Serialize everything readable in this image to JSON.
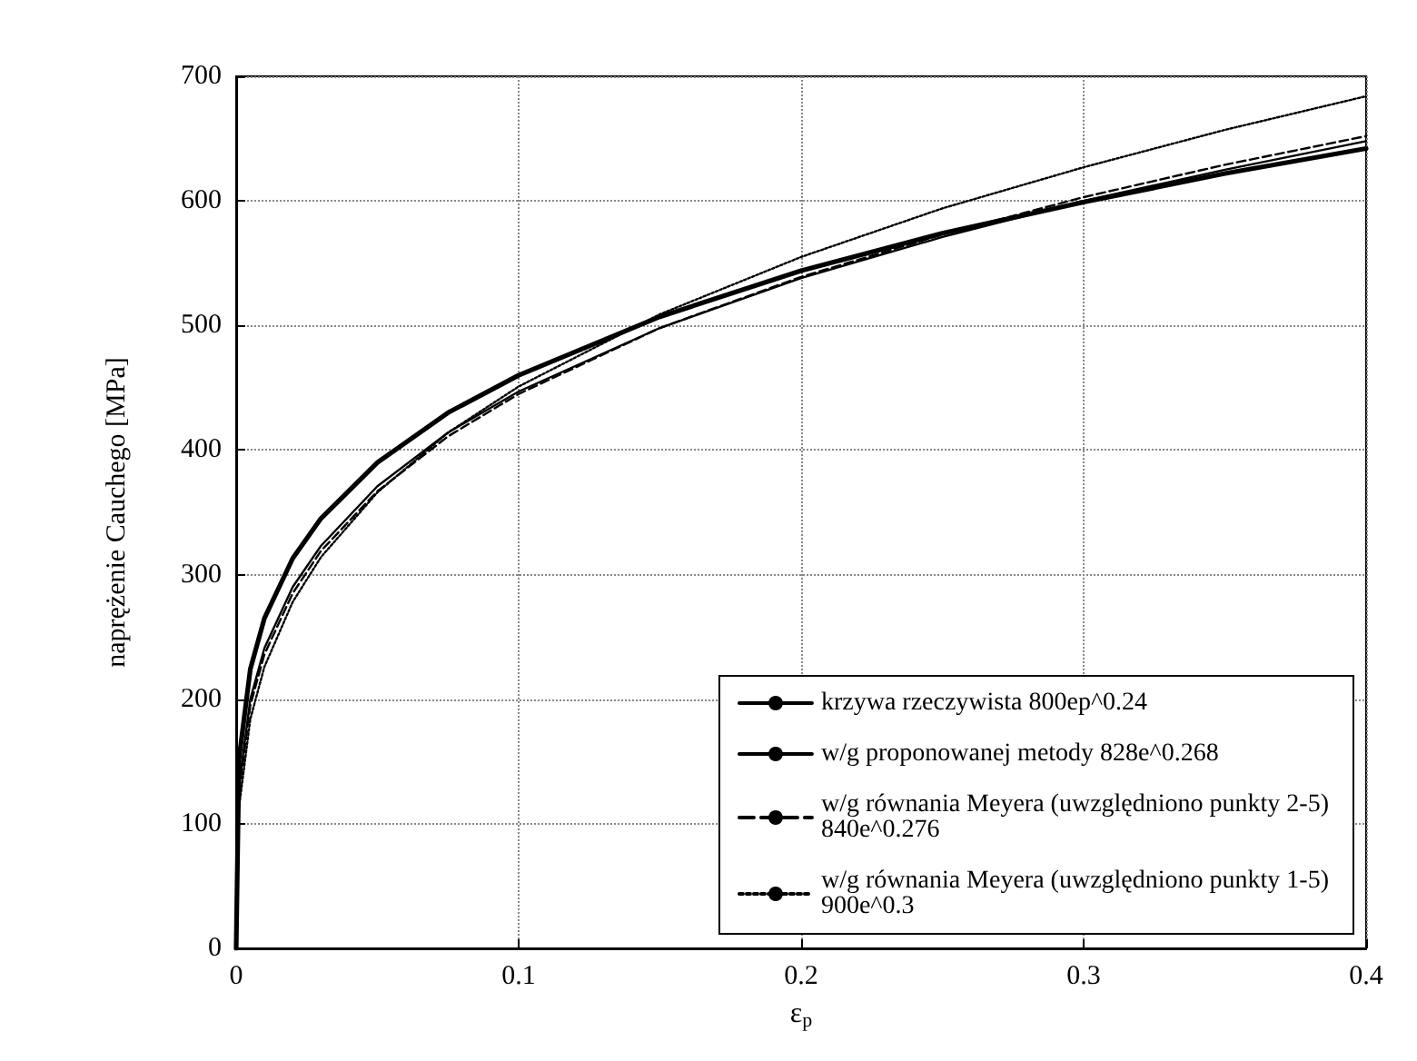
{
  "chart_data": {
    "type": "line",
    "xlabel": "ε$_{p}$",
    "ylabel": "naprężenie Cauchego [MPa]",
    "x": [
      0,
      0.001,
      0.005,
      0.01,
      0.02,
      0.03,
      0.05,
      0.075,
      0.1,
      0.15,
      0.2,
      0.25,
      0.3,
      0.35,
      0.4
    ],
    "series": [
      {
        "name": "krzywa rzeczywista 800ep^0.24",
        "color": "#000000",
        "line_style": "solid",
        "values": [
          0,
          152,
          224,
          265,
          313,
          345,
          390,
          430,
          460,
          507,
          544,
          574,
          599,
          622,
          642
        ]
      },
      {
        "name": "w/g proponowanej metody 828e^0.268",
        "color": "#000000",
        "line_style": "solid",
        "values": [
          0,
          130,
          200,
          241,
          290,
          323,
          371,
          414,
          447,
          498,
          538,
          571,
          600,
          625,
          648
        ]
      },
      {
        "name": "w/g równania Meyera (uwzględniono punkty 2-5) 840e^0.276",
        "color": "#000000",
        "line_style": "dashed",
        "values": [
          0,
          125,
          195,
          236,
          285,
          319,
          367,
          411,
          445,
          498,
          539,
          573,
          603,
          629,
          652
        ]
      },
      {
        "name": "w/g równania Meyera (uwzględniono punkty 1-5) 900e^0.3",
        "color": "#000000",
        "line_style": "dotted",
        "values": [
          0,
          113,
          184,
          226,
          278,
          314,
          366,
          414,
          451,
          509,
          555,
          594,
          627,
          657,
          684
        ]
      }
    ],
    "xlim": [
      0,
      0.4
    ],
    "xticks": [
      0,
      0.1,
      0.2,
      0.3,
      0.4
    ],
    "ylim": [
      0,
      700
    ],
    "yticks": [
      0,
      100,
      200,
      300,
      400,
      500,
      600,
      700
    ],
    "grid": true,
    "legend": "bottom right",
    "marker": "none"
  }
}
